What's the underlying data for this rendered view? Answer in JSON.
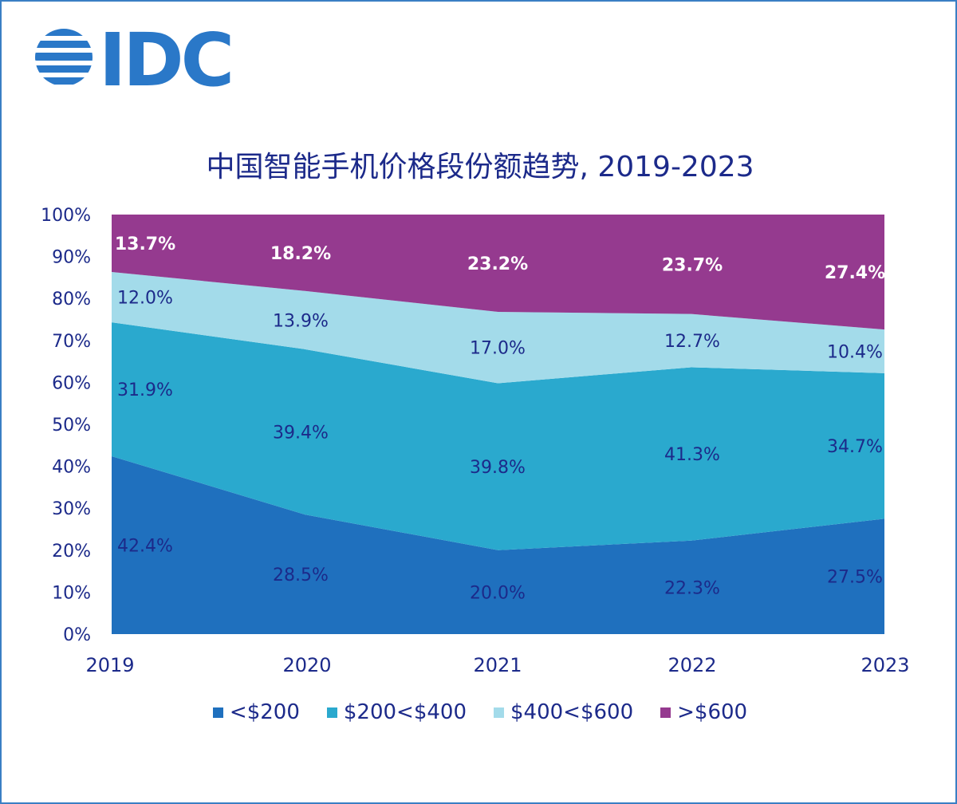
{
  "logo": {
    "text": "IDC",
    "color": "#2a78c8"
  },
  "chart_data": {
    "type": "area",
    "stacked": true,
    "title": "中国智能手机价格段份额趋势, 2019-2023",
    "categories": [
      "2019",
      "2020",
      "2021",
      "2022",
      "2023"
    ],
    "ylim": [
      0,
      100
    ],
    "yticks": [
      "0%",
      "10%",
      "20%",
      "30%",
      "40%",
      "50%",
      "60%",
      "70%",
      "80%",
      "90%",
      "100%"
    ],
    "legend_position": "bottom",
    "grid": false,
    "series": [
      {
        "name": "<$200",
        "color": "#1f70be",
        "label_color": "#1c2a8a",
        "values": [
          42.4,
          28.5,
          20.0,
          22.3,
          27.5
        ]
      },
      {
        "name": "$200<$400",
        "color": "#2aa9ce",
        "label_color": "#1c2a8a",
        "values": [
          31.9,
          39.4,
          39.8,
          41.3,
          34.7
        ]
      },
      {
        "name": "$400<$600",
        "color": "#a3dbea",
        "label_color": "#1c2a8a",
        "values": [
          12.0,
          13.9,
          17.0,
          12.7,
          10.4
        ]
      },
      {
        "name": ">$600",
        "color": "#953a8f",
        "label_color": "#ffffff",
        "values": [
          13.7,
          18.2,
          23.2,
          23.7,
          27.4
        ]
      }
    ]
  }
}
